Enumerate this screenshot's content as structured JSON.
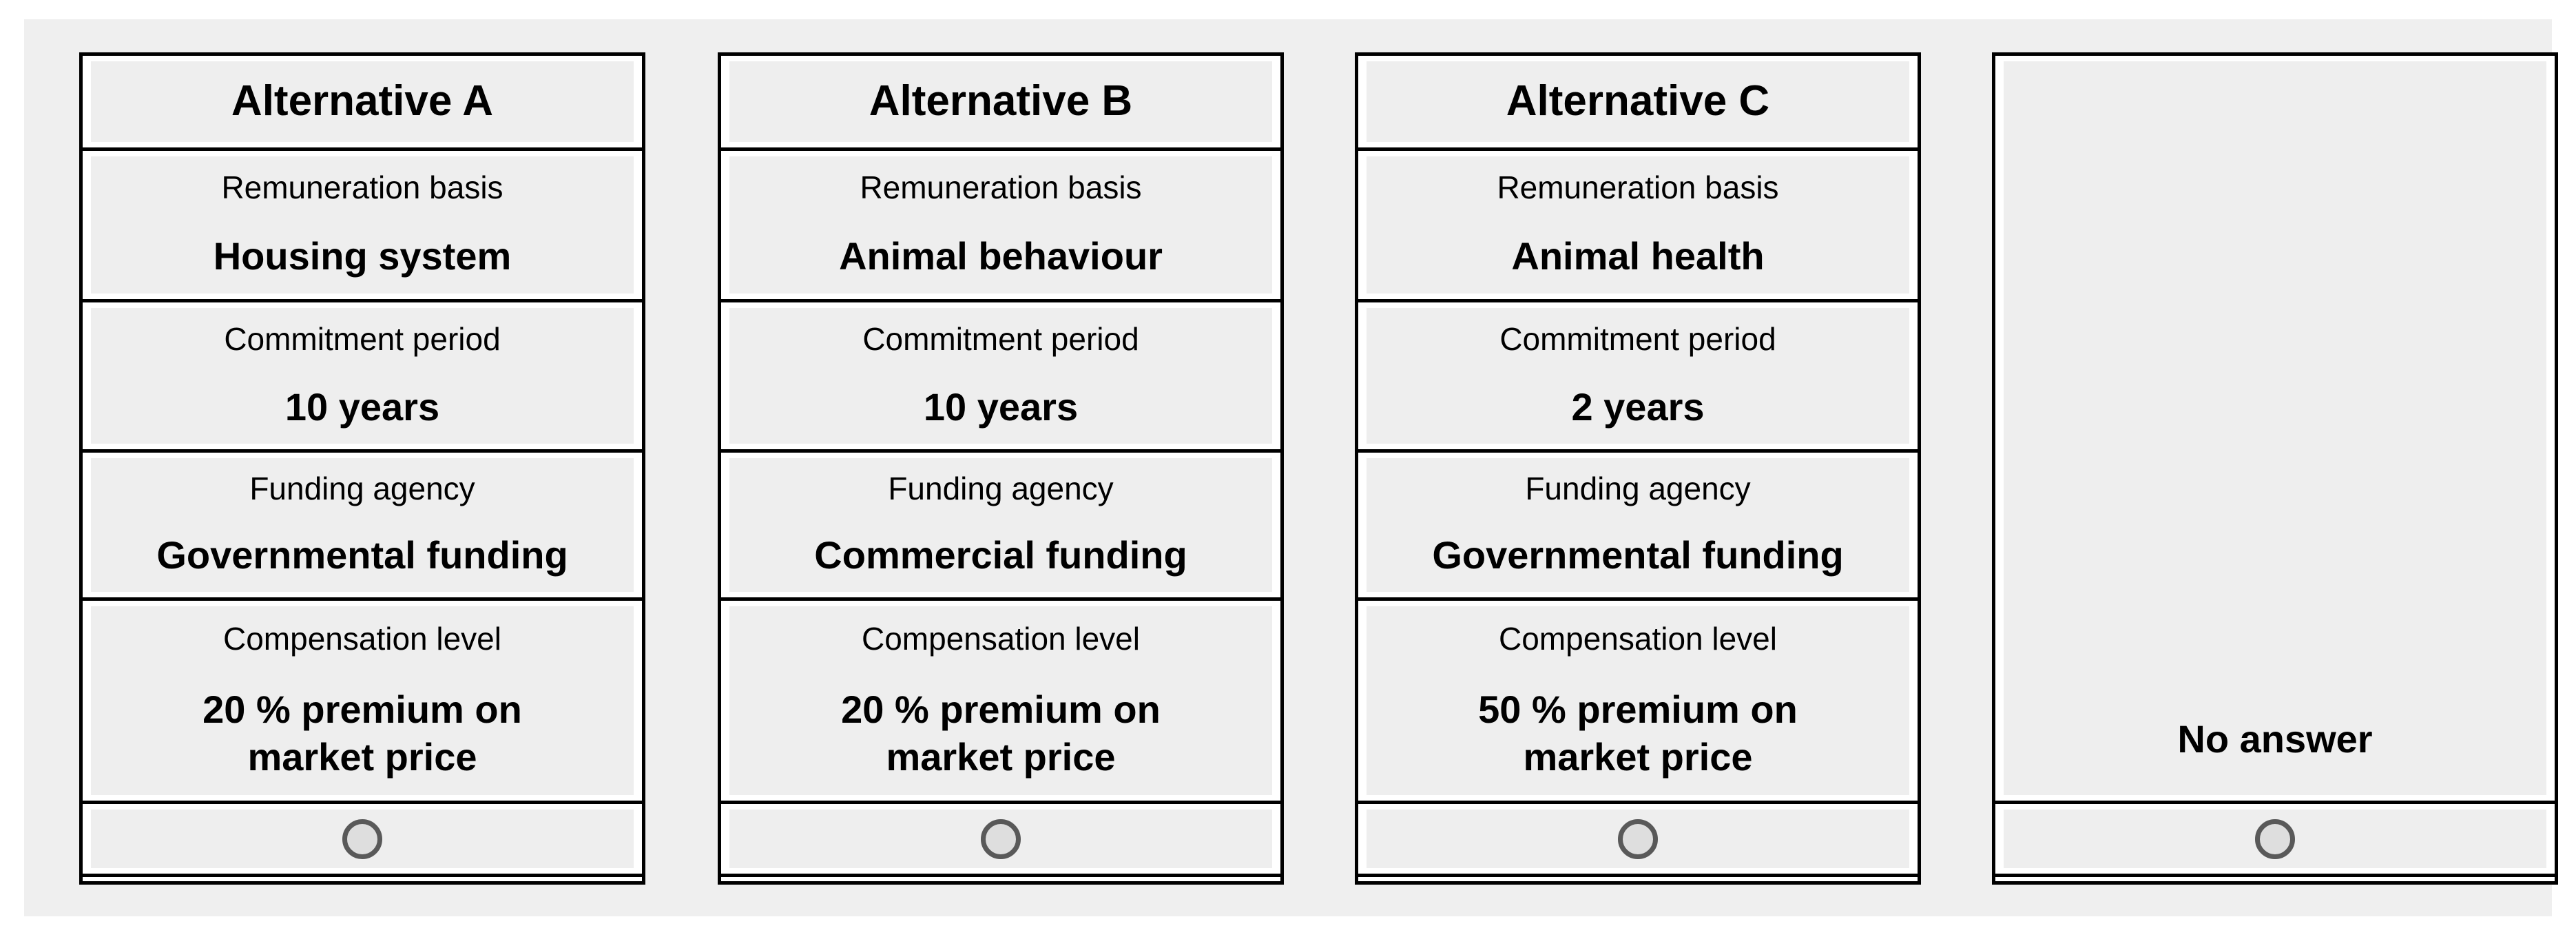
{
  "alternatives": [
    {
      "id": "A",
      "title": "Alternative A",
      "attributes": [
        {
          "label": "Remuneration basis",
          "value": "Housing system"
        },
        {
          "label": "Commitment period",
          "value": "10 years"
        },
        {
          "label": "Funding agency",
          "value": "Governmental funding"
        },
        {
          "label": "Compensation level",
          "value": "20 % premium on market price"
        }
      ],
      "radio_selected": false
    },
    {
      "id": "B",
      "title": "Alternative B",
      "attributes": [
        {
          "label": "Remuneration basis",
          "value": "Animal behaviour"
        },
        {
          "label": "Commitment period",
          "value": "10 years"
        },
        {
          "label": "Funding agency",
          "value": "Commercial funding"
        },
        {
          "label": "Compensation level",
          "value": "20 % premium on market price"
        }
      ],
      "radio_selected": false
    },
    {
      "id": "C",
      "title": "Alternative C",
      "attributes": [
        {
          "label": "Remuneration basis",
          "value": "Animal health"
        },
        {
          "label": "Commitment period",
          "value": "2 years"
        },
        {
          "label": "Funding agency",
          "value": "Governmental funding"
        },
        {
          "label": "Compensation level",
          "value": "50 % premium on market price"
        }
      ],
      "radio_selected": false
    }
  ],
  "no_answer": {
    "label": "No answer",
    "radio_selected": false
  },
  "icons": {
    "radio": "radio-circle-unselected"
  },
  "palette": {
    "page_bg": "#ffffff",
    "panel_bg": "#efefef",
    "cell_bg": "#eeeeee",
    "border": "#000000",
    "text": "#000000",
    "radio_ring": "#595959",
    "radio_fill": "#dedede"
  }
}
